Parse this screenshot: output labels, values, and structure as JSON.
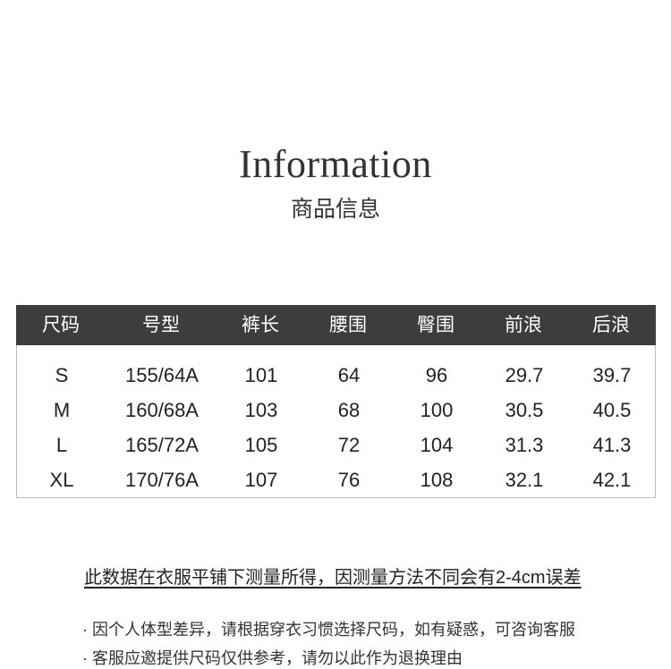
{
  "title": "Information",
  "subtitle": "商品信息",
  "table": {
    "headers": [
      "尺码",
      "号型",
      "裤长",
      "腰围",
      "臀围",
      "前浪",
      "后浪"
    ],
    "rows": [
      [
        "S",
        "155/64A",
        "101",
        "64",
        "96",
        "29.7",
        "39.7"
      ],
      [
        "M",
        "160/68A",
        "103",
        "68",
        "100",
        "30.5",
        "40.5"
      ],
      [
        "L",
        "165/72A",
        "105",
        "72",
        "104",
        "31.3",
        "41.3"
      ],
      [
        "XL",
        "170/76A",
        "107",
        "76",
        "108",
        "32.1",
        "42.1"
      ]
    ]
  },
  "note": "此数据在衣服平铺下测量所得，因测量方法不同会有2-4cm误差",
  "bullets": [
    "· 因个人体型差异，请根据穿衣习惯选择尺码，如有疑惑，可咨询客服",
    "· 客服应邀提供尺码仅供参考，请勿以此作为退换理由"
  ],
  "colors": {
    "header_bg": "#3d3d3d",
    "header_text": "#ffffff",
    "border": "#bbbbbb"
  }
}
